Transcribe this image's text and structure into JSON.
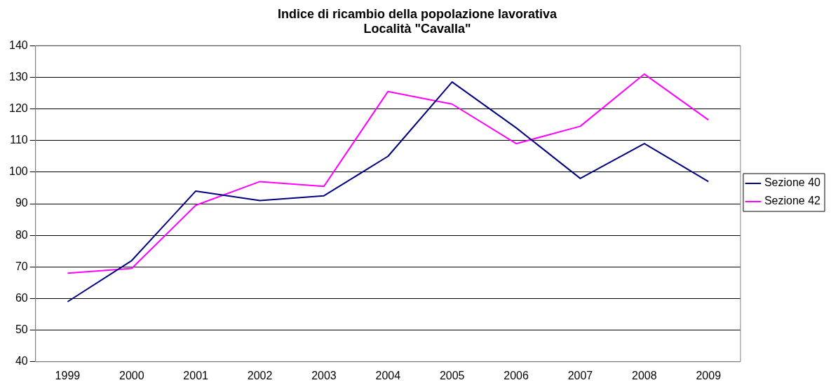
{
  "chart_data": {
    "type": "line",
    "title": "Indice di ricambio della popolazione lavorativa\nLocalità \"Cavalla\"",
    "categories": [
      "1999",
      "2000",
      "2001",
      "2002",
      "2003",
      "2004",
      "2005",
      "2006",
      "2007",
      "2008",
      "2009"
    ],
    "series": [
      {
        "name": "Sezione 40",
        "color": "#000080",
        "values": [
          59,
          72,
          94,
          91,
          92.5,
          105,
          128.5,
          114,
          98,
          109,
          97
        ]
      },
      {
        "name": "Sezione 42",
        "color": "#ff00ff",
        "values": [
          68,
          69.5,
          89.5,
          97,
          95.5,
          125.5,
          121.5,
          109,
          114.5,
          131,
          116.5
        ]
      }
    ],
    "ylim": [
      40,
      140
    ],
    "yticks": [
      40,
      50,
      60,
      70,
      80,
      90,
      100,
      110,
      120,
      130,
      140
    ],
    "grid": "y",
    "legend": "right",
    "marker": "none"
  }
}
